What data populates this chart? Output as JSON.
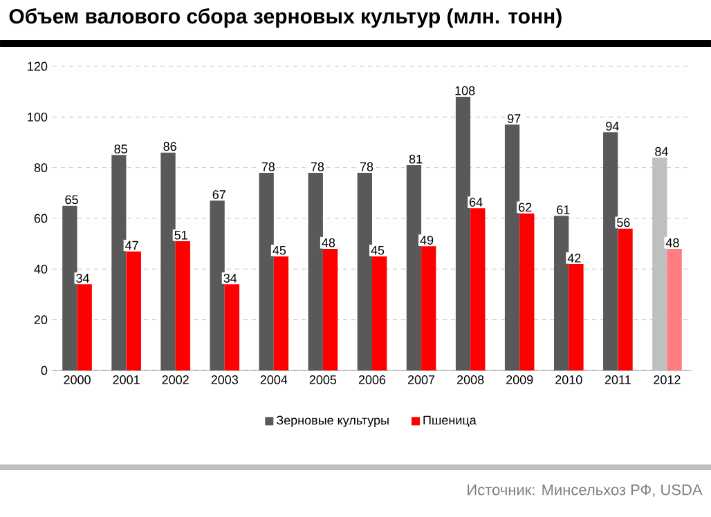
{
  "chart_data": {
    "type": "bar",
    "title": "Объем валового сбора зерновых культур (млн. тонн)",
    "categories": [
      "2000",
      "2001",
      "2002",
      "2003",
      "2004",
      "2005",
      "2006",
      "2007",
      "2008",
      "2009",
      "2010",
      "2011",
      "2012"
    ],
    "series": [
      {
        "name": "Зерновые культуры",
        "color": "#595959",
        "colors": [
          "#595959",
          "#595959",
          "#595959",
          "#595959",
          "#595959",
          "#595959",
          "#595959",
          "#595959",
          "#595959",
          "#595959",
          "#595959",
          "#595959",
          "#bfbfbf"
        ],
        "values": [
          65,
          85,
          86,
          67,
          78,
          78,
          78,
          81,
          108,
          97,
          61,
          94,
          84
        ]
      },
      {
        "name": "Пшеница",
        "color": "#ff0000",
        "colors": [
          "#ff0000",
          "#ff0000",
          "#ff0000",
          "#ff0000",
          "#ff0000",
          "#ff0000",
          "#ff0000",
          "#ff0000",
          "#ff0000",
          "#ff0000",
          "#ff0000",
          "#ff0000",
          "#ff7c80"
        ],
        "values": [
          34,
          47,
          51,
          34,
          45,
          48,
          45,
          49,
          64,
          62,
          42,
          56,
          48
        ]
      }
    ],
    "ylim": [
      0,
      120
    ],
    "yticks": [
      0,
      20,
      40,
      60,
      80,
      100,
      120
    ],
    "grid": "y",
    "legend": "bottom",
    "data_labels": true,
    "annotations": [
      "Источник: Минсельхоз РФ, USDA"
    ]
  }
}
